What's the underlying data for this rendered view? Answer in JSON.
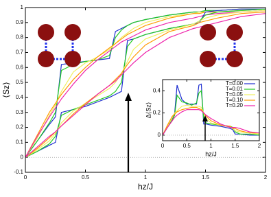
{
  "chart_data": [
    {
      "type": "line",
      "ylabel": "⟨Sz⟩",
      "xlabel": "hz/J",
      "x": [
        0,
        0.1,
        0.2,
        0.25,
        0.3,
        0.4,
        0.5,
        0.6,
        0.7,
        0.75,
        0.8,
        0.85,
        0.9,
        1.0,
        1.2,
        1.4,
        1.45,
        1.5,
        1.6,
        1.8,
        2.0
      ],
      "xlim": [
        0,
        2
      ],
      "ylim": [
        -0.1,
        1
      ],
      "xticks": [
        0,
        0.5,
        1,
        1.5,
        2
      ],
      "yticks": [
        -0.1,
        0,
        0.1,
        0.2,
        0.3,
        0.4,
        0.5,
        0.6,
        0.7,
        0.8,
        0.9,
        1
      ],
      "series": [
        {
          "color": "#1f2fd0",
          "values": [
            0,
            0.11,
            0.22,
            0.27,
            0.62,
            0.63,
            0.64,
            0.65,
            0.66,
            0.84,
            0.86,
            0.88,
            0.9,
            0.92,
            0.95,
            0.97,
            0.97,
            0.98,
            0.98,
            0.99,
            0.99
          ]
        },
        {
          "color": "#22cc22",
          "values": [
            0,
            0.11,
            0.23,
            0.3,
            0.58,
            0.62,
            0.64,
            0.65,
            0.68,
            0.8,
            0.85,
            0.88,
            0.9,
            0.92,
            0.95,
            0.97,
            0.97,
            0.98,
            0.98,
            0.99,
            0.99
          ]
        },
        {
          "color": "#f0f060",
          "values": [
            0,
            0.13,
            0.28,
            0.35,
            0.44,
            0.57,
            0.63,
            0.67,
            0.72,
            0.76,
            0.8,
            0.83,
            0.86,
            0.9,
            0.94,
            0.96,
            0.97,
            0.97,
            0.98,
            0.99,
            0.99
          ]
        },
        {
          "color": "#ff9900",
          "values": [
            0,
            0.15,
            0.3,
            0.36,
            0.42,
            0.52,
            0.6,
            0.67,
            0.73,
            0.76,
            0.79,
            0.82,
            0.84,
            0.88,
            0.93,
            0.96,
            0.96,
            0.97,
            0.97,
            0.98,
            0.99
          ]
        },
        {
          "color": "#ee22aa",
          "values": [
            0,
            0.14,
            0.27,
            0.33,
            0.39,
            0.49,
            0.58,
            0.65,
            0.71,
            0.74,
            0.77,
            0.79,
            0.81,
            0.85,
            0.9,
            0.93,
            0.94,
            0.95,
            0.96,
            0.97,
            0.98
          ]
        },
        {
          "color": "#1f2fd0",
          "values": [
            0,
            0.04,
            0.08,
            0.1,
            0.3,
            0.32,
            0.34,
            0.37,
            0.4,
            0.42,
            0.44,
            0.78,
            0.79,
            0.82,
            0.86,
            0.89,
            0.9,
            0.97,
            0.98,
            0.99,
            0.99
          ]
        },
        {
          "color": "#22cc22",
          "values": [
            0,
            0.04,
            0.09,
            0.14,
            0.28,
            0.32,
            0.35,
            0.38,
            0.41,
            0.44,
            0.5,
            0.74,
            0.79,
            0.82,
            0.86,
            0.89,
            0.91,
            0.95,
            0.97,
            0.98,
            0.99
          ]
        },
        {
          "color": "#f0f060",
          "values": [
            0,
            0.05,
            0.11,
            0.16,
            0.23,
            0.31,
            0.36,
            0.41,
            0.46,
            0.5,
            0.56,
            0.64,
            0.72,
            0.79,
            0.85,
            0.89,
            0.91,
            0.93,
            0.95,
            0.97,
            0.98
          ]
        },
        {
          "color": "#ff9900",
          "values": [
            0,
            0.06,
            0.13,
            0.17,
            0.21,
            0.29,
            0.36,
            0.42,
            0.48,
            0.52,
            0.56,
            0.62,
            0.67,
            0.75,
            0.84,
            0.88,
            0.9,
            0.91,
            0.93,
            0.96,
            0.97
          ]
        },
        {
          "color": "#ee22aa",
          "values": [
            0,
            0.07,
            0.14,
            0.17,
            0.21,
            0.28,
            0.35,
            0.42,
            0.48,
            0.51,
            0.55,
            0.59,
            0.63,
            0.7,
            0.8,
            0.86,
            0.87,
            0.88,
            0.9,
            0.94,
            0.96
          ]
        }
      ]
    },
    {
      "type": "line",
      "ylabel": "Δ⟨Sz⟩",
      "xlabel": "hz/J",
      "x": [
        0,
        0.1,
        0.2,
        0.25,
        0.3,
        0.4,
        0.5,
        0.6,
        0.7,
        0.75,
        0.8,
        0.85,
        0.9,
        1.0,
        1.2,
        1.4,
        1.45,
        1.5,
        1.6,
        1.8,
        2.0
      ],
      "xlim": [
        0,
        2
      ],
      "ylim": [
        -0.05,
        0.5
      ],
      "xticks": [
        0,
        0.5,
        1,
        1.5,
        2
      ],
      "yticks": [
        0,
        0.2,
        0.4
      ],
      "legend": "upper right",
      "series": [
        {
          "name": "T=0.00",
          "color": "#1f2fd0",
          "values": [
            0,
            0.07,
            0.14,
            0.2,
            0.45,
            0.32,
            0.28,
            0.28,
            0.28,
            0.45,
            0.46,
            0.1,
            0.1,
            0.09,
            0.08,
            0.06,
            0.05,
            0.01,
            0.01,
            0,
            0
          ]
        },
        {
          "name": "T=0.01",
          "color": "#22cc22",
          "values": [
            0,
            0.07,
            0.14,
            0.18,
            0.36,
            0.3,
            0.29,
            0.27,
            0.29,
            0.38,
            0.4,
            0.15,
            0.11,
            0.1,
            0.09,
            0.08,
            0.07,
            0.03,
            0.01,
            0.01,
            0
          ]
        },
        {
          "name": "T=0.05",
          "color": "#f0f060",
          "values": [
            0,
            0.08,
            0.16,
            0.2,
            0.22,
            0.26,
            0.27,
            0.26,
            0.26,
            0.26,
            0.25,
            0.2,
            0.15,
            0.11,
            0.09,
            0.07,
            0.06,
            0.04,
            0.03,
            0.02,
            0.01
          ]
        },
        {
          "name": "T=0.10",
          "color": "#ff9900",
          "values": [
            0,
            0.09,
            0.17,
            0.19,
            0.21,
            0.23,
            0.24,
            0.25,
            0.25,
            0.24,
            0.23,
            0.2,
            0.17,
            0.13,
            0.09,
            0.08,
            0.06,
            0.06,
            0.04,
            0.02,
            0.02
          ]
        },
        {
          "name": "T=0.20",
          "color": "#ee22aa",
          "values": [
            0,
            0.07,
            0.13,
            0.16,
            0.18,
            0.21,
            0.23,
            0.23,
            0.23,
            0.23,
            0.22,
            0.2,
            0.18,
            0.15,
            0.1,
            0.07,
            0.07,
            0.07,
            0.06,
            0.03,
            0.02
          ]
        }
      ]
    }
  ]
}
